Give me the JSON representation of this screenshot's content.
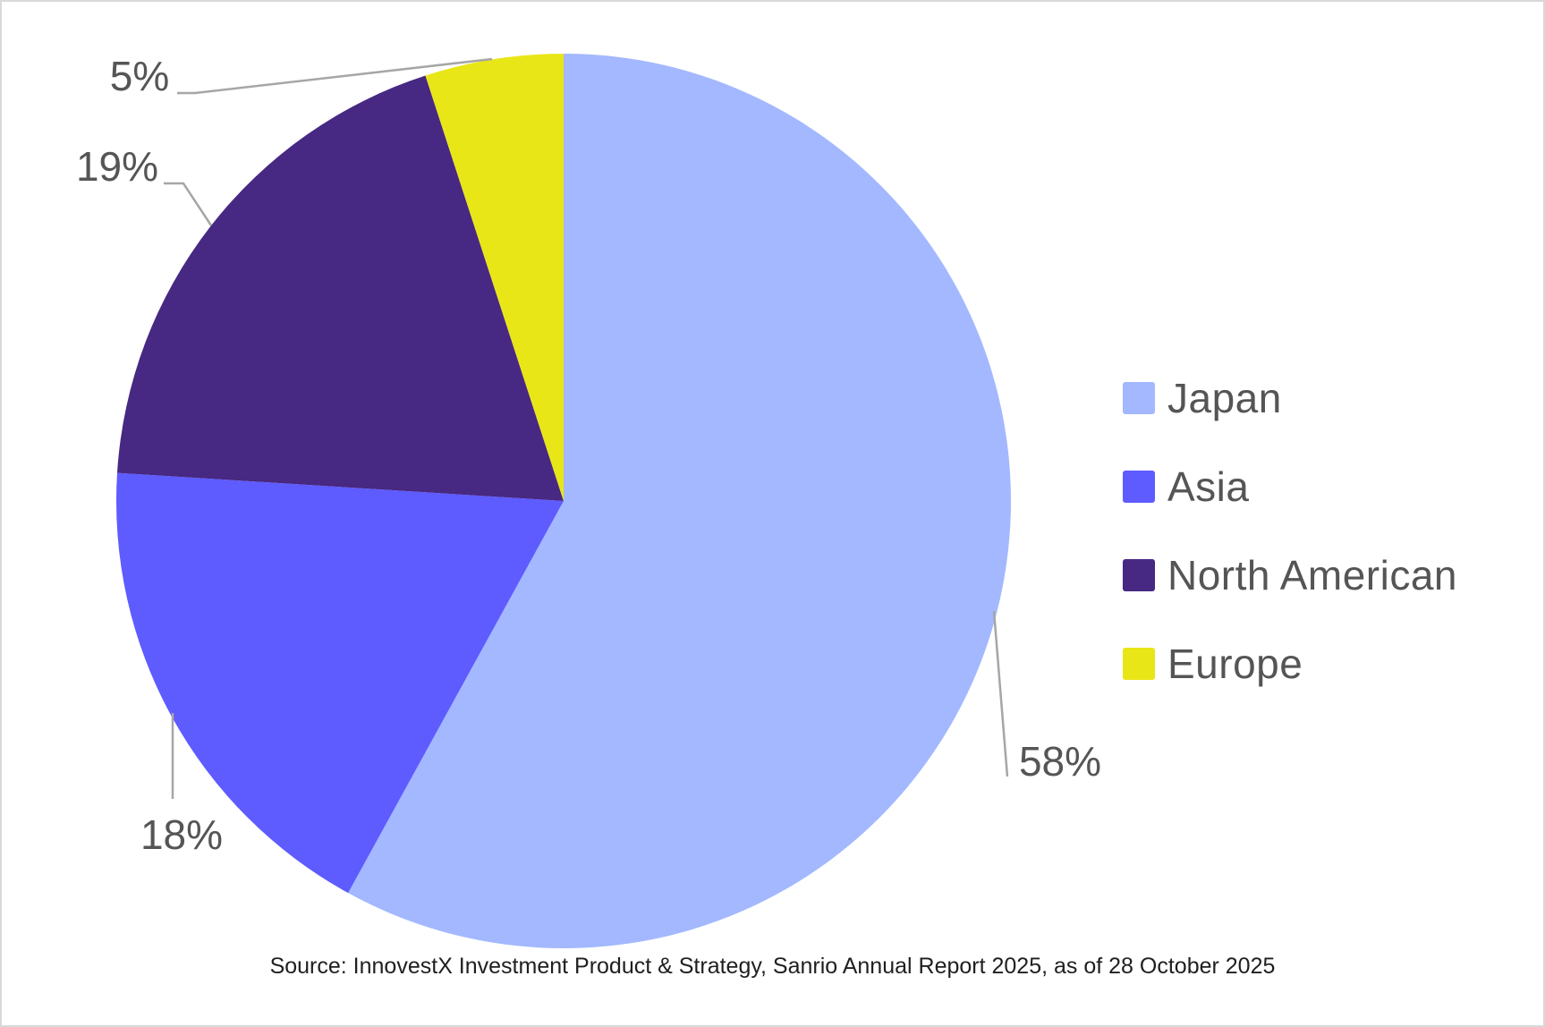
{
  "chart_data": {
    "type": "pie",
    "title": "",
    "start_angle_deg": 0,
    "direction": "clockwise",
    "slices": [
      {
        "name": "Japan",
        "value": 58,
        "label": "58%",
        "color": "#A3B8FF"
      },
      {
        "name": "Asia",
        "value": 18,
        "label": "18%",
        "color": "#5E5BFF"
      },
      {
        "name": "North American",
        "value": 19,
        "label": "19%",
        "color": "#472882"
      },
      {
        "name": "Europe",
        "value": 5,
        "label": "5%",
        "color": "#E9E617"
      }
    ],
    "data_labels": "outside with leader lines",
    "legend_position": "right"
  },
  "legend": {
    "items": [
      {
        "label": "Japan",
        "color": "#A3B8FF"
      },
      {
        "label": "Asia",
        "color": "#5E5BFF"
      },
      {
        "label": "North American",
        "color": "#472882"
      },
      {
        "label": "Europe",
        "color": "#E9E617"
      }
    ]
  },
  "source": {
    "text": "Source: InnovestX Investment Product & Strategy, Sanrio Annual Report 2025, as of 28 October 2025"
  },
  "colors": {
    "label_text": "#555555",
    "leader_line": "#a6a6a6",
    "border": "#d9d9d9"
  }
}
